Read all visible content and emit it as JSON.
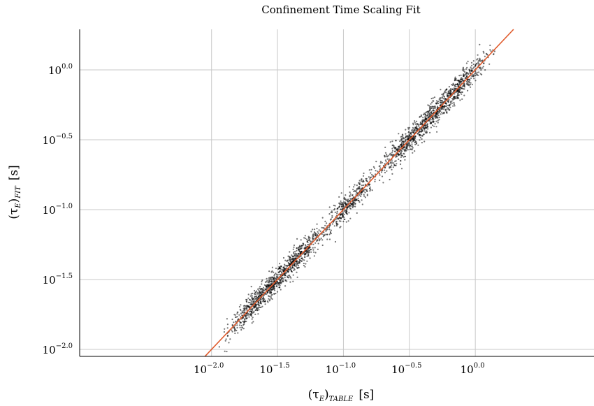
{
  "chart_data": {
    "type": "scatter",
    "title": "Confinement Time Scaling Fit",
    "xlabel": {
      "main": "(τ",
      "sub1": "E",
      "close": ")",
      "sub2": "TABLE",
      "unit": "[s]"
    },
    "ylabel": {
      "main": "(τ",
      "sub1": "E",
      "close": ")",
      "sub2": "FIT",
      "unit": "[s]"
    },
    "x_scale": "log10",
    "y_scale": "log10",
    "xlim_log10": [
      -3.0,
      0.9
    ],
    "ylim_log10": [
      -2.05,
      0.29
    ],
    "tick_base": "10",
    "x_ticks": [
      {
        "exp": -2.0,
        "label": "−2.0"
      },
      {
        "exp": -1.5,
        "label": "−1.5"
      },
      {
        "exp": -1.0,
        "label": "−1.0"
      },
      {
        "exp": -0.5,
        "label": "−0.5"
      },
      {
        "exp": 0.0,
        "label": "0.0"
      }
    ],
    "y_ticks": [
      {
        "exp": 0.0,
        "label": "0.0"
      },
      {
        "exp": -0.5,
        "label": "−0.5"
      },
      {
        "exp": -1.0,
        "label": "−1.0"
      },
      {
        "exp": -1.5,
        "label": "−1.5"
      },
      {
        "exp": -2.0,
        "label": "−2.0"
      }
    ],
    "grid": true,
    "fit_line": {
      "slope": 1.0,
      "intercept_log10": 0.0,
      "color": "#e05a2b"
    },
    "scatter": {
      "color": "#000000",
      "approx_points": 2500,
      "clusters": [
        {
          "center_log10": -1.65,
          "n": 500
        },
        {
          "center_log10": -1.38,
          "n": 500
        },
        {
          "center_log10": -0.97,
          "n": 400
        },
        {
          "center_log10": -0.52,
          "n": 400
        },
        {
          "center_log10": -0.3,
          "n": 350
        },
        {
          "center_log10": -0.1,
          "n": 350
        }
      ],
      "x_range_log10": [
        -1.95,
        0.15
      ],
      "note": "points scattered tightly around the 1:1 line"
    }
  }
}
